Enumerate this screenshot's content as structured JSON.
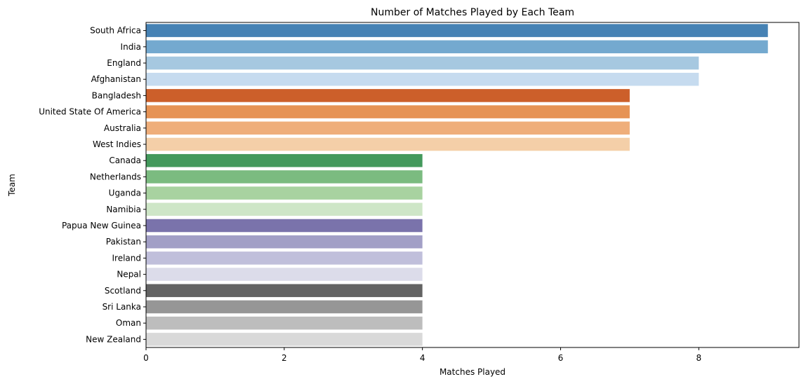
{
  "chart_data": {
    "type": "bar",
    "orientation": "horizontal",
    "title": "Number of Matches Played by Each Team",
    "xlabel": "Matches Played",
    "ylabel": "Team",
    "xlim": [
      0,
      9.45
    ],
    "xticks": [
      0,
      2,
      4,
      6,
      8
    ],
    "grid": false,
    "legend": "none",
    "categories": [
      "South Africa",
      "India",
      "England",
      "Afghanistan",
      "Bangladesh",
      "United State Of America",
      "Australia",
      "West Indies",
      "Canada",
      "Netherlands",
      "Uganda",
      "Namibia",
      "Papua New Guinea",
      "Pakistan",
      "Ireland",
      "Nepal",
      "Scotland",
      "Sri Lanka",
      "Oman",
      "New Zealand"
    ],
    "values": [
      9,
      9,
      8,
      8,
      7,
      7,
      7,
      7,
      4,
      4,
      4,
      4,
      4,
      4,
      4,
      4,
      4,
      4,
      4,
      4
    ],
    "colors": [
      "#4682b4",
      "#74a9cf",
      "#a6c8e0",
      "#c6dbef",
      "#cc5f2a",
      "#e69355",
      "#efae7a",
      "#f4cfa8",
      "#43995c",
      "#7bbb80",
      "#a8d2a0",
      "#cee6c7",
      "#7a73ab",
      "#a29fc6",
      "#c0bfdb",
      "#dcdcea",
      "#636363",
      "#969696",
      "#bdbdbd",
      "#d9d9d9"
    ]
  }
}
